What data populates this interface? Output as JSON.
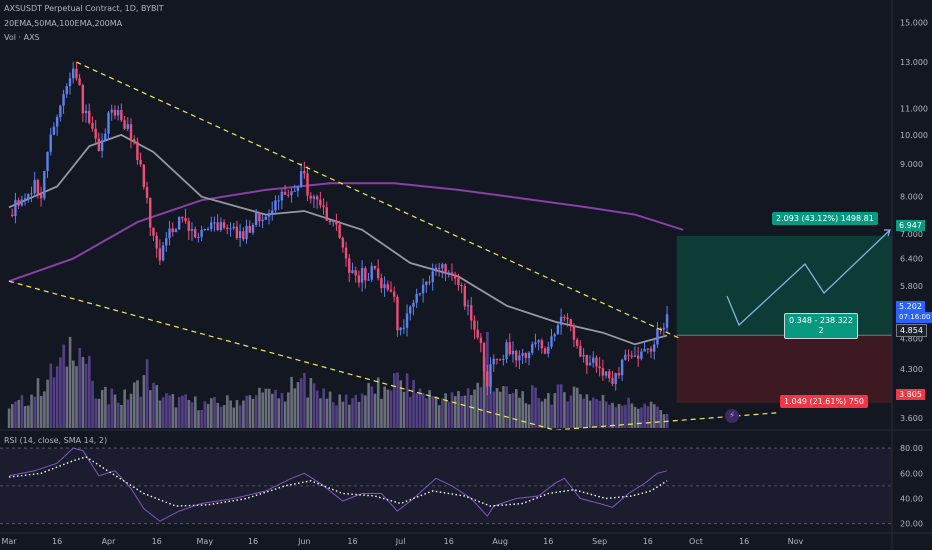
{
  "header": {
    "symbol": "AXSUSDT Perpetual Contract, 1D, BYBIT",
    "indicators": "20EMA,50MA,100EMA,200MA",
    "volume": "Vol · AXS"
  },
  "rsi_pane": {
    "label": "RSI (14, close, SMA 14, 2)"
  },
  "price_badges": {
    "current": "5.202",
    "countdown": "07:16:00",
    "entry": "4.854",
    "target": "6.947",
    "stop": "3.805"
  },
  "position": {
    "target_label": "2.093 (43.12%) 1498.81",
    "middle_label_1": "0.348 - 238.322",
    "middle_label_2": "2",
    "stop_label": "1.049 (21.61%) 750"
  },
  "watermark": {
    "badge_glyph": "⚡"
  },
  "colors": {
    "background": "#131722",
    "up": "#5b82f0",
    "down": "#ee4d78",
    "target_zone": "#0d3b36",
    "stop_zone": "#3d1a22",
    "ma_grey": "#9598a1",
    "ma_purple": "#8a3ea8",
    "channel": "#f5e94a",
    "badge_green": "#089981",
    "badge_red": "#f23645"
  },
  "chart_data": [
    {
      "type": "candlestick",
      "y_scale": "log",
      "ylim": [
        3.45,
        15.8
      ],
      "yticks": [
        3.6,
        3.95,
        4.3,
        4.8,
        5.8,
        6.4,
        7.0,
        8.0,
        9.0,
        10.0,
        11.0,
        13.0,
        15.0
      ],
      "ytick_labels": [
        "3.600",
        "3.950",
        "4.300",
        "4.800",
        "5.800",
        "6.400",
        "7.000",
        "8.000",
        "9.000",
        "10.000",
        "11.000",
        "13.000",
        "15.000"
      ],
      "x_tick_labels": [
        "Mar",
        "16",
        "Apr",
        "16",
        "May",
        "16",
        "Jun",
        "16",
        "Jul",
        "16",
        "Aug",
        "16",
        "Sep",
        "16",
        "Oct",
        "16",
        "Nov"
      ],
      "x_tick_days": [
        0,
        15,
        31,
        46,
        61,
        76,
        92,
        107,
        122,
        137,
        153,
        168,
        184,
        199,
        214,
        229,
        245
      ],
      "key_closes": [
        [
          0,
          7.5
        ],
        [
          4,
          7.9
        ],
        [
          8,
          8.3
        ],
        [
          10,
          8.1
        ],
        [
          12,
          9.5
        ],
        [
          15,
          10.5
        ],
        [
          17,
          11.4
        ],
        [
          19,
          12.5
        ],
        [
          20,
          12.8
        ],
        [
          21,
          12.6
        ],
        [
          23,
          11.0
        ],
        [
          25,
          10.3
        ],
        [
          27,
          9.6
        ],
        [
          29,
          9.8
        ],
        [
          31,
          10.8
        ],
        [
          33,
          11.0
        ],
        [
          35,
          10.6
        ],
        [
          37,
          10.3
        ],
        [
          39,
          9.9
        ],
        [
          41,
          8.8
        ],
        [
          43,
          7.8
        ],
        [
          45,
          6.8
        ],
        [
          47,
          6.5
        ],
        [
          50,
          7.0
        ],
        [
          53,
          7.4
        ],
        [
          56,
          7.2
        ],
        [
          58,
          7.0
        ],
        [
          61,
          7.0
        ],
        [
          63,
          7.3
        ],
        [
          66,
          7.2
        ],
        [
          69,
          7.3
        ],
        [
          72,
          7.0
        ],
        [
          75,
          7.2
        ],
        [
          77,
          7.5
        ],
        [
          80,
          7.5
        ],
        [
          83,
          7.8
        ],
        [
          86,
          8.2
        ],
        [
          89,
          8.4
        ],
        [
          91,
          8.6
        ],
        [
          92,
          8.5
        ],
        [
          94,
          8.0
        ],
        [
          97,
          7.8
        ],
        [
          100,
          7.4
        ],
        [
          103,
          7.0
        ],
        [
          105,
          6.4
        ],
        [
          108,
          5.9
        ],
        [
          110,
          6.1
        ],
        [
          112,
          6.1
        ],
        [
          114,
          6.2
        ],
        [
          116,
          5.9
        ],
        [
          118,
          5.8
        ],
        [
          120,
          5.5
        ],
        [
          121,
          4.9
        ],
        [
          123,
          5.1
        ],
        [
          125,
          5.3
        ],
        [
          128,
          5.6
        ],
        [
          131,
          6.0
        ],
        [
          133,
          6.2
        ],
        [
          135,
          6.2
        ],
        [
          137,
          6.0
        ],
        [
          139,
          6.0
        ],
        [
          141,
          5.7
        ],
        [
          143,
          5.4
        ],
        [
          145,
          5.1
        ],
        [
          147,
          4.6
        ],
        [
          149,
          4.0
        ],
        [
          150,
          4.3
        ],
        [
          152,
          4.55
        ],
        [
          155,
          4.6
        ],
        [
          158,
          4.5
        ],
        [
          161,
          4.6
        ],
        [
          164,
          4.7
        ],
        [
          167,
          4.6
        ],
        [
          169,
          4.8
        ],
        [
          171,
          5.0
        ],
        [
          173,
          5.2
        ],
        [
          175,
          5.0
        ],
        [
          177,
          4.7
        ],
        [
          179,
          4.5
        ],
        [
          181,
          4.4
        ],
        [
          184,
          4.3
        ],
        [
          186,
          4.2
        ],
        [
          188,
          4.1
        ],
        [
          190,
          4.3
        ],
        [
          193,
          4.45
        ],
        [
          195,
          4.6
        ],
        [
          197,
          4.5
        ],
        [
          199,
          4.6
        ],
        [
          201,
          4.8
        ],
        [
          203,
          5.0
        ],
        [
          205,
          5.2
        ]
      ]
    },
    {
      "type": "line",
      "series": [
        {
          "values": [
            [
              0,
              7.7
            ],
            [
              15,
              8.3
            ],
            [
              25,
              9.6
            ],
            [
              35,
              10.0
            ],
            [
              45,
              9.4
            ],
            [
              60,
              8.0
            ],
            [
              80,
              7.5
            ],
            [
              92,
              7.6
            ],
            [
              110,
              7.1
            ],
            [
              125,
              6.3
            ],
            [
              140,
              6.0
            ],
            [
              155,
              5.4
            ],
            [
              170,
              5.1
            ],
            [
              185,
              4.9
            ],
            [
              195,
              4.7
            ],
            [
              205,
              4.85
            ]
          ]
        },
        {
          "values": [
            [
              0,
              5.9
            ],
            [
              20,
              6.4
            ],
            [
              40,
              7.3
            ],
            [
              60,
              7.9
            ],
            [
              80,
              8.2
            ],
            [
              100,
              8.4
            ],
            [
              120,
              8.4
            ],
            [
              140,
              8.2
            ],
            [
              160,
              7.95
            ],
            [
              180,
              7.7
            ],
            [
              195,
              7.5
            ],
            [
              210,
              7.1
            ]
          ]
        },
        {
          "values": [
            [
              21,
              13.0
            ],
            [
              209,
              4.8
            ]
          ]
        },
        {
          "values": [
            [
              0,
              5.9
            ],
            [
              170,
              3.45
            ],
            [
              239,
              3.67
            ]
          ]
        }
      ]
    },
    {
      "type": "bar",
      "volume_closes": [
        [
          0,
          0.2
        ],
        [
          5,
          0.3
        ],
        [
          12,
          0.5
        ],
        [
          17,
          0.7
        ],
        [
          20,
          1.0
        ],
        [
          22,
          0.85
        ],
        [
          25,
          0.6
        ],
        [
          28,
          0.35
        ],
        [
          35,
          0.3
        ],
        [
          41,
          0.45
        ],
        [
          43,
          0.6
        ],
        [
          45,
          0.4
        ],
        [
          50,
          0.3
        ],
        [
          61,
          0.25
        ],
        [
          75,
          0.3
        ],
        [
          92,
          0.45
        ],
        [
          97,
          0.4
        ],
        [
          105,
          0.3
        ],
        [
          121,
          0.5
        ],
        [
          130,
          0.35
        ],
        [
          137,
          0.3
        ],
        [
          147,
          0.45
        ],
        [
          149,
          0.9
        ],
        [
          150,
          0.55
        ],
        [
          155,
          0.35
        ],
        [
          170,
          0.35
        ],
        [
          176,
          0.4
        ],
        [
          184,
          0.3
        ],
        [
          195,
          0.25
        ],
        [
          205,
          0.2
        ]
      ]
    },
    {
      "type": "line",
      "ylim": [
        15,
        88
      ],
      "yticks": [
        20,
        40,
        60,
        80
      ],
      "ytick_labels": [
        "20.00",
        "40.00",
        "60.00",
        "80.00"
      ],
      "series": [
        {
          "values": [
            [
              0,
              58
            ],
            [
              8,
              62
            ],
            [
              15,
              68
            ],
            [
              20,
              80
            ],
            [
              23,
              78
            ],
            [
              28,
              58
            ],
            [
              33,
              62
            ],
            [
              38,
              48
            ],
            [
              42,
              32
            ],
            [
              47,
              22
            ],
            [
              53,
              30
            ],
            [
              60,
              36
            ],
            [
              70,
              40
            ],
            [
              80,
              46
            ],
            [
              88,
              56
            ],
            [
              92,
              60
            ],
            [
              97,
              52
            ],
            [
              104,
              38
            ],
            [
              110,
              44
            ],
            [
              116,
              44
            ],
            [
              121,
              30
            ],
            [
              126,
              40
            ],
            [
              133,
              56
            ],
            [
              138,
              50
            ],
            [
              144,
              40
            ],
            [
              149,
              26
            ],
            [
              151,
              34
            ],
            [
              158,
              40
            ],
            [
              165,
              42
            ],
            [
              170,
              52
            ],
            [
              173,
              56
            ],
            [
              178,
              40
            ],
            [
              184,
              36
            ],
            [
              188,
              33
            ],
            [
              193,
              44
            ],
            [
              198,
              52
            ],
            [
              202,
              60
            ],
            [
              205,
              62
            ]
          ]
        },
        {
          "values": [
            [
              0,
              57
            ],
            [
              10,
              60
            ],
            [
              20,
              70
            ],
            [
              24,
              73
            ],
            [
              32,
              60
            ],
            [
              42,
              44
            ],
            [
              52,
              34
            ],
            [
              62,
              35
            ],
            [
              74,
              40
            ],
            [
              86,
              50
            ],
            [
              94,
              54
            ],
            [
              104,
              44
            ],
            [
              114,
              42
            ],
            [
              122,
              36
            ],
            [
              132,
              46
            ],
            [
              142,
              42
            ],
            [
              150,
              34
            ],
            [
              160,
              36
            ],
            [
              168,
              44
            ],
            [
              176,
              47
            ],
            [
              186,
              40
            ],
            [
              194,
              42
            ],
            [
              200,
              46
            ],
            [
              205,
              54
            ]
          ]
        }
      ]
    }
  ]
}
